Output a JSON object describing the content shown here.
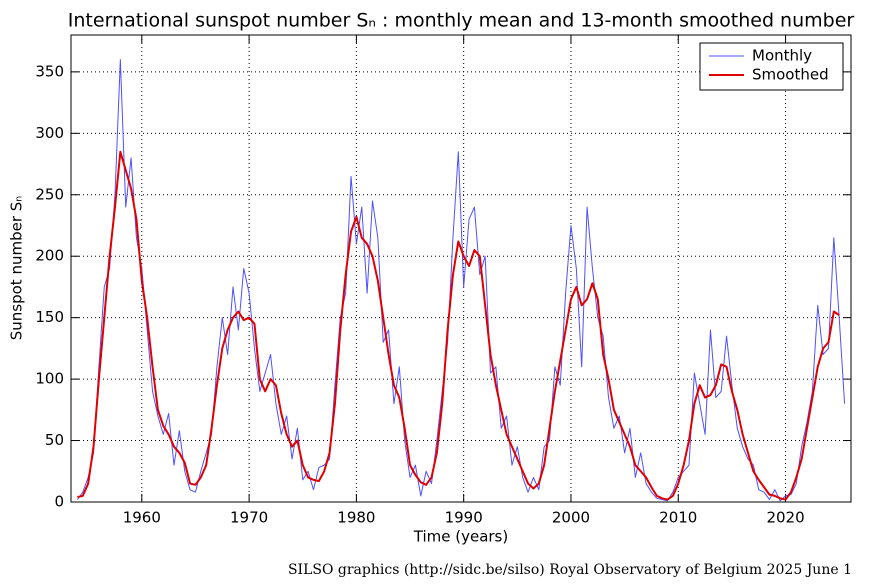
{
  "chart_data": {
    "type": "line",
    "title": "International sunspot number Sₙ : monthly mean and 13-month smoothed number",
    "x_label": "Time (years)",
    "y_label": "Sunspot number Sₙ",
    "footer": "SILSO graphics (http://sidc.be/silso)  Royal Observatory of Belgium  2025 June 1",
    "x": [
      1954.0,
      1954.5,
      1955.0,
      1955.5,
      1956.0,
      1956.5,
      1957.0,
      1957.5,
      1958.0,
      1958.5,
      1959.0,
      1959.5,
      1960.0,
      1960.5,
      1961.0,
      1961.5,
      1962.0,
      1962.5,
      1963.0,
      1963.5,
      1964.0,
      1964.5,
      1965.0,
      1965.5,
      1966.0,
      1966.5,
      1967.0,
      1967.5,
      1968.0,
      1968.5,
      1969.0,
      1969.5,
      1970.0,
      1970.5,
      1971.0,
      1971.5,
      1972.0,
      1972.5,
      1973.0,
      1973.5,
      1974.0,
      1974.5,
      1975.0,
      1975.5,
      1976.0,
      1976.5,
      1977.0,
      1977.5,
      1978.0,
      1978.5,
      1979.0,
      1979.5,
      1980.0,
      1980.5,
      1981.0,
      1981.5,
      1982.0,
      1982.5,
      1983.0,
      1983.5,
      1984.0,
      1984.5,
      1985.0,
      1985.5,
      1986.0,
      1986.5,
      1987.0,
      1987.5,
      1988.0,
      1988.5,
      1989.0,
      1989.5,
      1990.0,
      1990.5,
      1991.0,
      1991.5,
      1992.0,
      1992.5,
      1993.0,
      1993.5,
      1994.0,
      1994.5,
      1995.0,
      1995.5,
      1996.0,
      1996.5,
      1997.0,
      1997.5,
      1998.0,
      1998.5,
      1999.0,
      1999.5,
      2000.0,
      2000.5,
      2001.0,
      2001.5,
      2002.0,
      2002.5,
      2003.0,
      2003.5,
      2004.0,
      2004.5,
      2005.0,
      2005.5,
      2006.0,
      2006.5,
      2007.0,
      2007.5,
      2008.0,
      2008.5,
      2009.0,
      2009.5,
      2010.0,
      2010.5,
      2011.0,
      2011.5,
      2012.0,
      2012.5,
      2013.0,
      2013.5,
      2014.0,
      2014.5,
      2015.0,
      2015.5,
      2016.0,
      2016.5,
      2017.0,
      2017.5,
      2018.0,
      2018.5,
      2019.0,
      2019.5,
      2020.0,
      2020.5,
      2021.0,
      2021.5,
      2022.0,
      2022.5,
      2023.0,
      2023.5,
      2024.0,
      2024.5,
      2025.0,
      2025.5
    ],
    "series": [
      {
        "name": "Monthly",
        "color": "#5050ff",
        "width": 1,
        "values": [
          2,
          8,
          20,
          40,
          110,
          175,
          190,
          250,
          360,
          240,
          280,
          215,
          190,
          140,
          90,
          70,
          55,
          72,
          30,
          58,
          25,
          10,
          8,
          25,
          40,
          55,
          110,
          150,
          120,
          175,
          140,
          190,
          170,
          125,
          90,
          105,
          120,
          80,
          55,
          70,
          35,
          60,
          18,
          25,
          10,
          28,
          30,
          35,
          95,
          150,
          170,
          265,
          210,
          240,
          170,
          245,
          215,
          130,
          140,
          80,
          110,
          50,
          20,
          30,
          5,
          25,
          15,
          50,
          90,
          130,
          215,
          285,
          175,
          230,
          240,
          185,
          200,
          105,
          110,
          60,
          70,
          30,
          45,
          20,
          8,
          20,
          10,
          45,
          50,
          110,
          95,
          170,
          225,
          190,
          110,
          240,
          190,
          150,
          135,
          85,
          60,
          70,
          40,
          60,
          20,
          40,
          15,
          8,
          3,
          2,
          1,
          8,
          20,
          25,
          30,
          105,
          80,
          55,
          140,
          85,
          90,
          135,
          95,
          60,
          45,
          35,
          30,
          10,
          8,
          2,
          10,
          1,
          5,
          6,
          15,
          45,
          65,
          90,
          160,
          120,
          125,
          215,
          150,
          80
        ]
      },
      {
        "name": "Smoothed",
        "color": "#e00000",
        "width": 2,
        "values": [
          4,
          5,
          15,
          45,
          100,
          150,
          200,
          240,
          285,
          270,
          255,
          230,
          180,
          150,
          110,
          75,
          62,
          55,
          45,
          40,
          32,
          15,
          14,
          20,
          30,
          60,
          95,
          125,
          140,
          150,
          155,
          148,
          150,
          145,
          100,
          90,
          100,
          95,
          72,
          55,
          45,
          50,
          30,
          20,
          18,
          17,
          25,
          40,
          80,
          140,
          185,
          220,
          232,
          215,
          210,
          200,
          180,
          150,
          120,
          95,
          85,
          60,
          30,
          22,
          16,
          14,
          20,
          40,
          80,
          140,
          185,
          212,
          200,
          192,
          205,
          200,
          160,
          120,
          95,
          75,
          55,
          45,
          35,
          25,
          15,
          11,
          15,
          30,
          60,
          90,
          115,
          140,
          165,
          175,
          160,
          165,
          178,
          165,
          120,
          100,
          75,
          65,
          55,
          45,
          30,
          25,
          20,
          12,
          5,
          3,
          2,
          5,
          15,
          30,
          50,
          80,
          95,
          85,
          87,
          95,
          112,
          110,
          90,
          75,
          55,
          40,
          25,
          18,
          12,
          6,
          5,
          3,
          2,
          8,
          20,
          35,
          60,
          85,
          110,
          125,
          130,
          155,
          152,
          null
        ]
      }
    ],
    "xlim": [
      1953.4,
      2026.1
    ],
    "ylim": [
      0,
      380
    ],
    "xticks": [
      1960,
      1970,
      1980,
      1990,
      2000,
      2010,
      2020
    ],
    "yticks": [
      0,
      50,
      100,
      150,
      200,
      250,
      300,
      350
    ],
    "grid": true,
    "legend": "upper right"
  }
}
